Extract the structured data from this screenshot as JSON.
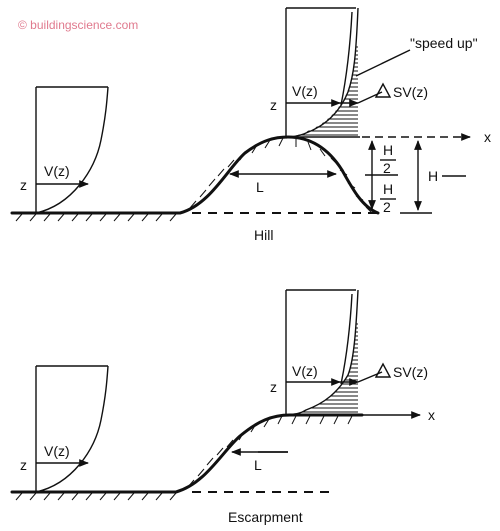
{
  "watermark": "© buildingscience.com",
  "hill": {
    "caption": "Hill",
    "speed_up": "\"speed up\"",
    "delta_sv": "SV(z)",
    "v_upstream": "V(z)",
    "v_crest": "V(z)",
    "z_upstream": "z",
    "z_crest": "z",
    "x_axis": "x",
    "length": "L",
    "half_top_num": "H",
    "half_top_den": "2",
    "half_bot_num": "H",
    "half_bot_den": "2",
    "height": "H"
  },
  "escarpment": {
    "caption": "Escarpment",
    "delta_sv": "SV(z)",
    "v_upstream": "V(z)",
    "v_crest": "V(z)",
    "z_upstream": "z",
    "z_crest": "z",
    "x_axis": "x",
    "length": "L"
  }
}
